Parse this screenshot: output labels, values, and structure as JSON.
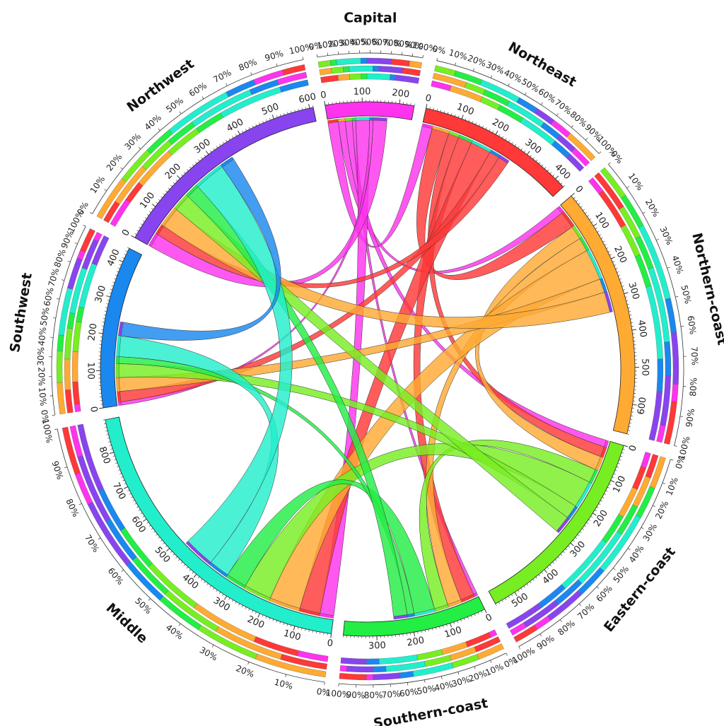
{
  "chart_data": {
    "type": "chord",
    "tick_step": 100,
    "percent_ticks": [
      "0%",
      "10%",
      "20%",
      "30%",
      "40%",
      "50%",
      "60%",
      "70%",
      "80%",
      "90%",
      "100%"
    ],
    "regions": [
      {
        "name": "Capital",
        "color": "#ff33ee",
        "total": 240
      },
      {
        "name": "Northeast",
        "color": "#ff3838",
        "total": 430
      },
      {
        "name": "Northern-coast",
        "color": "#ffaa33",
        "total": 680
      },
      {
        "name": "Eastern-coast",
        "color": "#77ee22",
        "total": 560
      },
      {
        "name": "Southern-coast",
        "color": "#22ee44",
        "total": 390
      },
      {
        "name": "Middle",
        "color": "#22eecc",
        "total": 890
      },
      {
        "name": "Southwest",
        "color": "#1a88ee",
        "total": 440
      },
      {
        "name": "Northwest",
        "color": "#8844ee",
        "total": 610
      }
    ],
    "flows": [
      {
        "from": 0,
        "to": 1,
        "value": 30
      },
      {
        "from": 0,
        "to": 2,
        "value": 20
      },
      {
        "from": 0,
        "to": 3,
        "value": 20
      },
      {
        "from": 0,
        "to": 4,
        "value": 10
      },
      {
        "from": 0,
        "to": 5,
        "value": 40
      },
      {
        "from": 0,
        "to": 6,
        "value": 10
      },
      {
        "from": 0,
        "to": 7,
        "value": 40
      },
      {
        "from": 1,
        "to": 2,
        "value": 50
      },
      {
        "from": 1,
        "to": 3,
        "value": 30
      },
      {
        "from": 1,
        "to": 4,
        "value": 40
      },
      {
        "from": 1,
        "to": 5,
        "value": 60
      },
      {
        "from": 1,
        "to": 6,
        "value": 30
      },
      {
        "from": 1,
        "to": 7,
        "value": 30
      },
      {
        "from": 2,
        "to": 3,
        "value": 40
      },
      {
        "from": 2,
        "to": 4,
        "value": 40
      },
      {
        "from": 2,
        "to": 5,
        "value": 90
      },
      {
        "from": 2,
        "to": 6,
        "value": 40
      },
      {
        "from": 2,
        "to": 7,
        "value": 60
      },
      {
        "from": 3,
        "to": 4,
        "value": 40
      },
      {
        "from": 3,
        "to": 5,
        "value": 80
      },
      {
        "from": 3,
        "to": 6,
        "value": 40
      },
      {
        "from": 3,
        "to": 7,
        "value": 50
      },
      {
        "from": 4,
        "to": 5,
        "value": 60
      },
      {
        "from": 4,
        "to": 6,
        "value": 20
      },
      {
        "from": 4,
        "to": 7,
        "value": 40
      },
      {
        "from": 5,
        "to": 6,
        "value": 60
      },
      {
        "from": 5,
        "to": 7,
        "value": 90
      },
      {
        "from": 6,
        "to": 7,
        "value": 40
      }
    ]
  }
}
